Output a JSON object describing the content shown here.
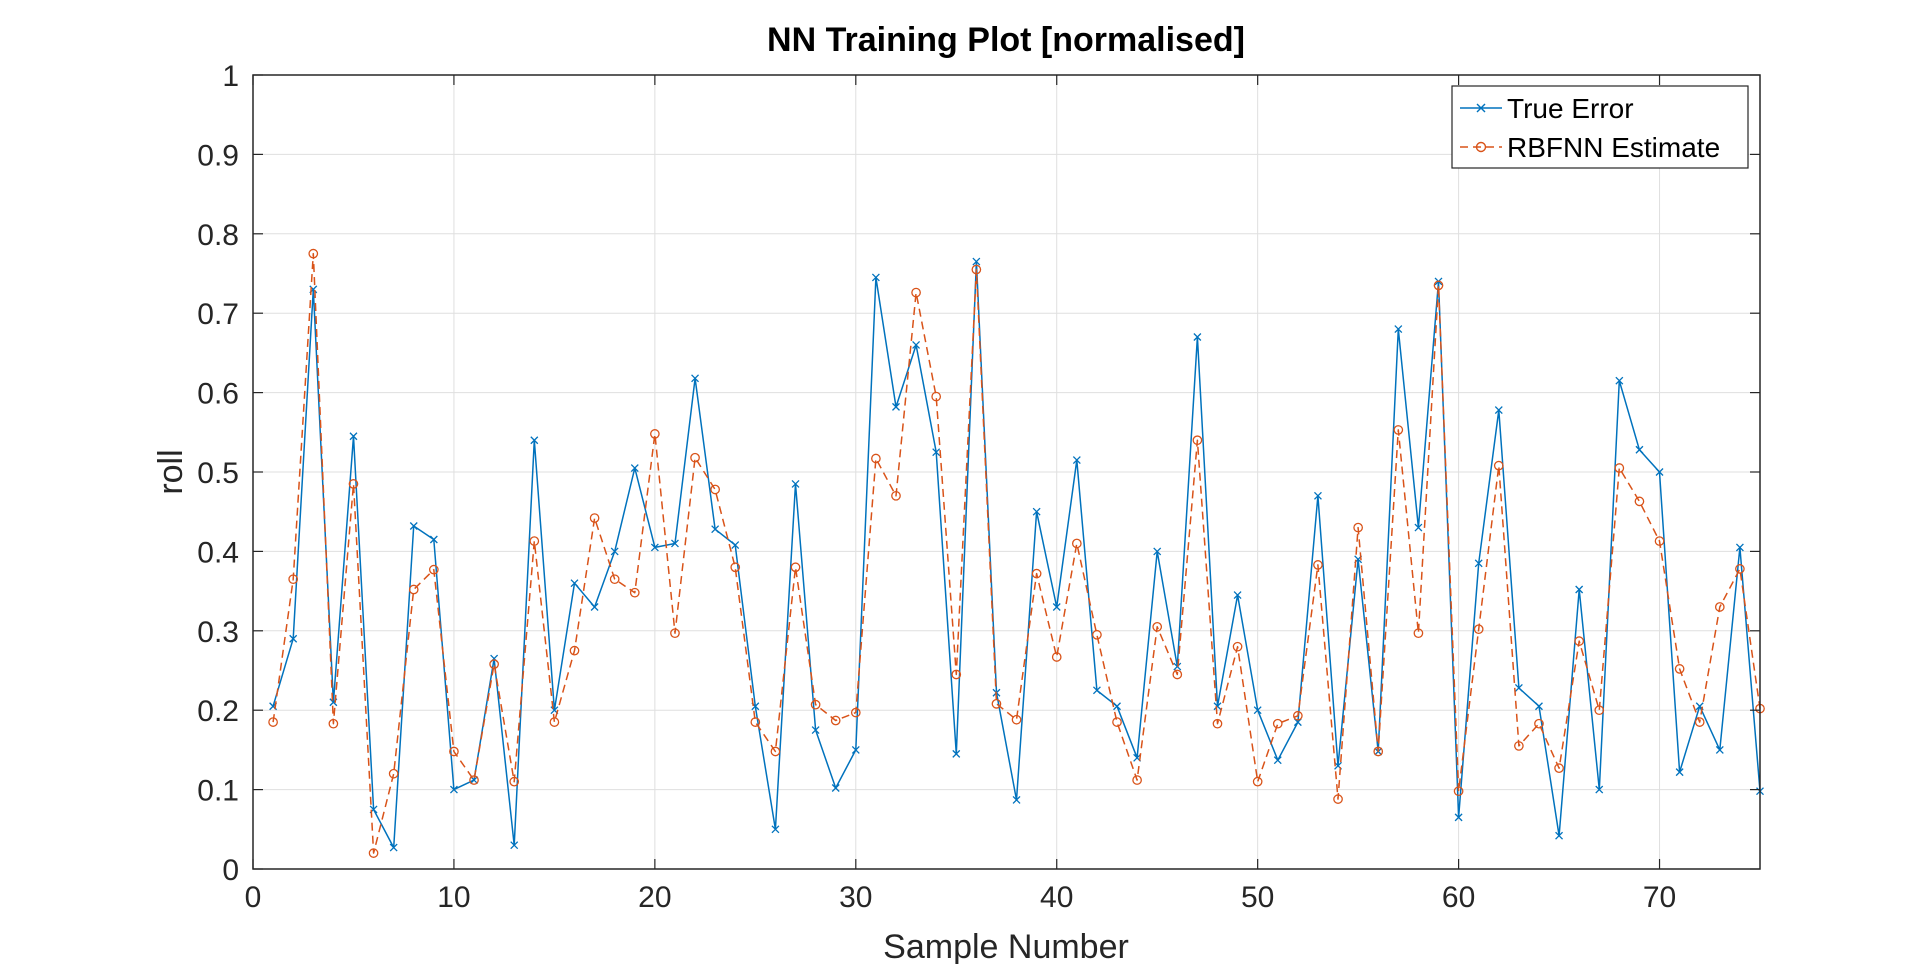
{
  "chart_data": {
    "type": "line",
    "title": "NN Training Plot [normalised]",
    "xlabel": "Sample Number",
    "ylabel": "roll",
    "xlim": [
      0,
      75
    ],
    "ylim": [
      0,
      1
    ],
    "xticks": [
      0,
      10,
      20,
      30,
      40,
      50,
      60,
      70
    ],
    "yticks": [
      0,
      0.1,
      0.2,
      0.3,
      0.4,
      0.5,
      0.6,
      0.7,
      0.8,
      0.9,
      1
    ],
    "grid": true,
    "legend_position": "top-right",
    "x": [
      1,
      2,
      3,
      4,
      5,
      6,
      7,
      8,
      9,
      10,
      11,
      12,
      13,
      14,
      15,
      16,
      17,
      18,
      19,
      20,
      21,
      22,
      23,
      24,
      25,
      26,
      27,
      28,
      29,
      30,
      31,
      32,
      33,
      34,
      35,
      36,
      37,
      38,
      39,
      40,
      41,
      42,
      43,
      44,
      45,
      46,
      47,
      48,
      49,
      50,
      51,
      52,
      53,
      54,
      55,
      56,
      57,
      58,
      59,
      60,
      61,
      62,
      63,
      64,
      65,
      66,
      67,
      68,
      69,
      70,
      71,
      72,
      73,
      74,
      75
    ],
    "series": [
      {
        "name": "True Error",
        "color": "#0072BD",
        "line_style": "solid",
        "marker": "x",
        "values": [
          0.205,
          0.29,
          0.73,
          0.21,
          0.545,
          0.075,
          0.027,
          0.432,
          0.415,
          0.1,
          0.112,
          0.265,
          0.03,
          0.54,
          0.2,
          0.36,
          0.33,
          0.4,
          0.505,
          0.405,
          0.41,
          0.618,
          0.428,
          0.408,
          0.205,
          0.05,
          0.485,
          0.175,
          0.102,
          0.15,
          0.745,
          0.582,
          0.66,
          0.525,
          0.145,
          0.765,
          0.222,
          0.087,
          0.45,
          0.33,
          0.515,
          0.225,
          0.205,
          0.14,
          0.4,
          0.255,
          0.67,
          0.205,
          0.345,
          0.2,
          0.137,
          0.185,
          0.47,
          0.13,
          0.39,
          0.148,
          0.68,
          0.43,
          0.74,
          0.065,
          0.385,
          0.578,
          0.228,
          0.205,
          0.042,
          0.352,
          0.1,
          0.615,
          0.528,
          0.5,
          0.122,
          0.205,
          0.15,
          0.405,
          0.098
        ]
      },
      {
        "name": "RBFNN Estimate",
        "color": "#D95319",
        "line_style": "dashed",
        "marker": "o",
        "values": [
          0.185,
          0.365,
          0.775,
          0.183,
          0.485,
          0.02,
          0.12,
          0.352,
          0.377,
          0.148,
          0.112,
          0.258,
          0.11,
          0.413,
          0.185,
          0.275,
          0.442,
          0.365,
          0.348,
          0.548,
          0.297,
          0.518,
          0.478,
          0.38,
          0.185,
          0.148,
          0.38,
          0.207,
          0.187,
          0.197,
          0.517,
          0.47,
          0.726,
          0.595,
          0.245,
          0.755,
          0.208,
          0.188,
          0.372,
          0.267,
          0.41,
          0.295,
          0.185,
          0.112,
          0.305,
          0.245,
          0.54,
          0.183,
          0.28,
          0.11,
          0.183,
          0.193,
          0.383,
          0.088,
          0.43,
          0.148,
          0.553,
          0.297,
          0.735,
          0.098,
          0.302,
          0.508,
          0.155,
          0.183,
          0.127,
          0.287,
          0.2,
          0.505,
          0.463,
          0.413,
          0.252,
          0.185,
          0.33,
          0.378,
          0.202
        ]
      }
    ]
  }
}
